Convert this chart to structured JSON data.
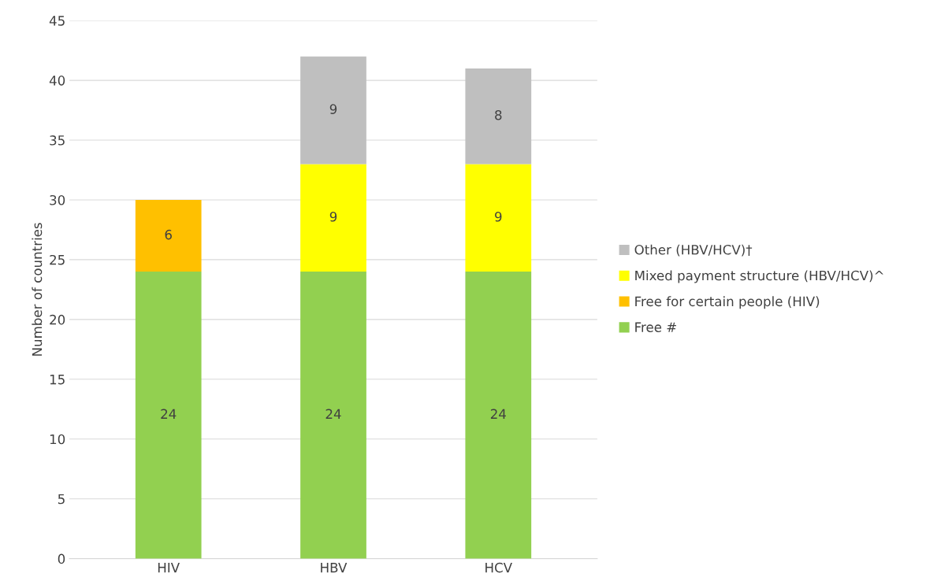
{
  "chart_data": {
    "type": "bar",
    "stacked": true,
    "ylabel": "Number of countries",
    "categories": [
      "HIV",
      "HBV",
      "HCV"
    ],
    "series": [
      {
        "name": "Free #",
        "color": "#92d050",
        "values": [
          24,
          24,
          24
        ]
      },
      {
        "name": "Free for certain people (HIV)",
        "color": "#ffc000",
        "values": [
          6,
          null,
          null
        ]
      },
      {
        "name": "Mixed payment structure (HBV/HCV)^",
        "color": "#ffff00",
        "values": [
          null,
          9,
          9
        ]
      },
      {
        "name": "Other (HBV/HCV)†",
        "color": "#bfbfbf",
        "values": [
          null,
          9,
          8
        ]
      }
    ],
    "ylim": [
      0,
      45
    ],
    "yticks": [
      0,
      5,
      10,
      15,
      20,
      25,
      30,
      35,
      40,
      45
    ],
    "grid": "y",
    "legend": "right",
    "data_labels": true
  }
}
